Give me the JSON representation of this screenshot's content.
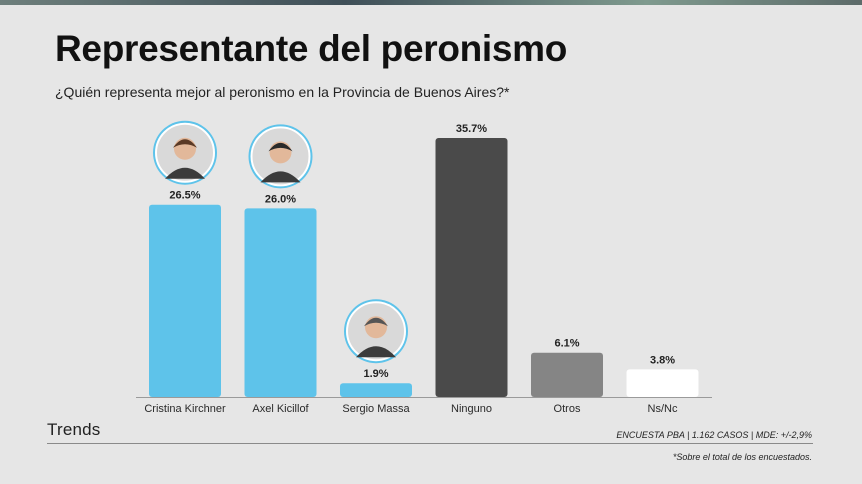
{
  "header": {
    "title": "Representante del peronismo",
    "subtitle": "¿Quién representa mejor al peronismo en la Provincia de Buenos Aires?*"
  },
  "footer": {
    "brand": "Trends",
    "source": "ENCUESTA PBA | 1.162 CASOS | MDE: +/-2,9%",
    "footnote": "*Sobre el total de los encuestados."
  },
  "chart_data": {
    "type": "bar",
    "categories": [
      "Cristina Kirchner",
      "Axel Kicillof",
      "Sergio Massa",
      "Ninguno",
      "Otros",
      "Ns/Nc"
    ],
    "values": [
      26.5,
      26.0,
      1.9,
      35.7,
      6.1,
      3.8
    ],
    "value_labels": [
      "26.5%",
      "26.0%",
      "1.9%",
      "35.7%",
      "6.1%",
      "3.8%"
    ],
    "colors": [
      "#5ec3ea",
      "#5ec3ea",
      "#5ec3ea",
      "#4a4a4a",
      "#858585",
      "#ffffff"
    ],
    "portraits": [
      true,
      true,
      true,
      false,
      false,
      false
    ],
    "ylim": [
      0,
      35.7
    ],
    "grid": false,
    "legend": "none"
  }
}
